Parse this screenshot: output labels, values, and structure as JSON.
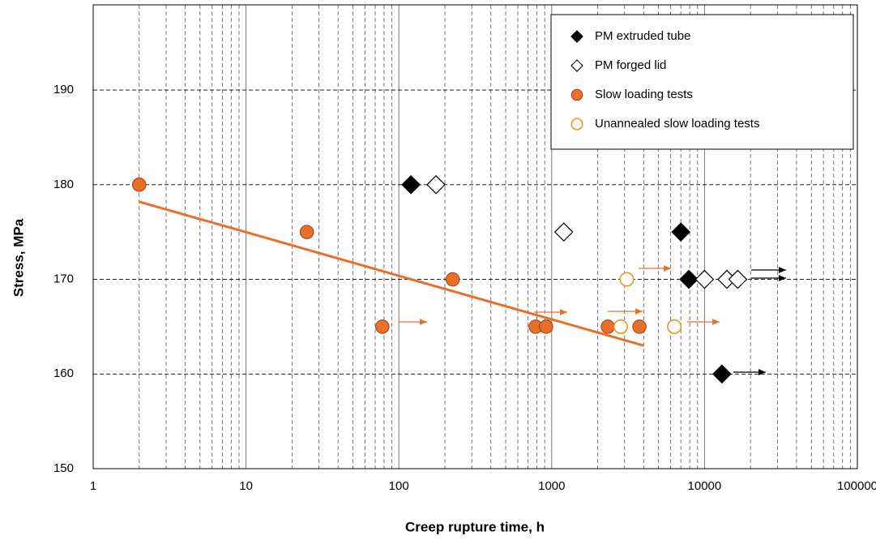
{
  "chart_data": {
    "type": "scatter",
    "x_label": "Creep rupture time, h",
    "y_label": "Stress, MPa",
    "xscale": "log",
    "xlim": [
      1,
      100000
    ],
    "xticks": [
      1,
      10,
      100,
      1000,
      10000,
      100000
    ],
    "ylim": [
      150,
      199
    ],
    "yticks": [
      150,
      160,
      170,
      180,
      190
    ],
    "grid": true,
    "legend": "top-right",
    "series": [
      {
        "name": "PM extruded tube",
        "marker": "diamond",
        "filled": true,
        "color": "#000000",
        "x": [
          120,
          7000,
          7900,
          13000
        ],
        "values": [
          180,
          175,
          170,
          160
        ]
      },
      {
        "name": "PM forged lid",
        "marker": "diamond",
        "filled": false,
        "color": "#000000",
        "x": [
          175,
          1200,
          10000,
          14000,
          16500
        ],
        "values": [
          180,
          175,
          170,
          170,
          170
        ]
      },
      {
        "name": "Slow loading tests",
        "marker": "circle",
        "filled": true,
        "color": "#e8702a",
        "x": [
          2,
          25,
          78,
          225,
          785,
          920,
          2330,
          3750
        ],
        "values": [
          180,
          175,
          165,
          170,
          165,
          165,
          165,
          165
        ]
      },
      {
        "name": "Unannealed slow loading tests",
        "marker": "circle",
        "filled": false,
        "color": "#f0961e",
        "x": [
          3100,
          2830,
          6340
        ],
        "values": [
          170,
          165,
          165
        ]
      }
    ],
    "trendline": {
      "color": "#e8702a",
      "x": [
        2,
        4000
      ],
      "values": [
        178.2,
        163
      ]
    }
  }
}
